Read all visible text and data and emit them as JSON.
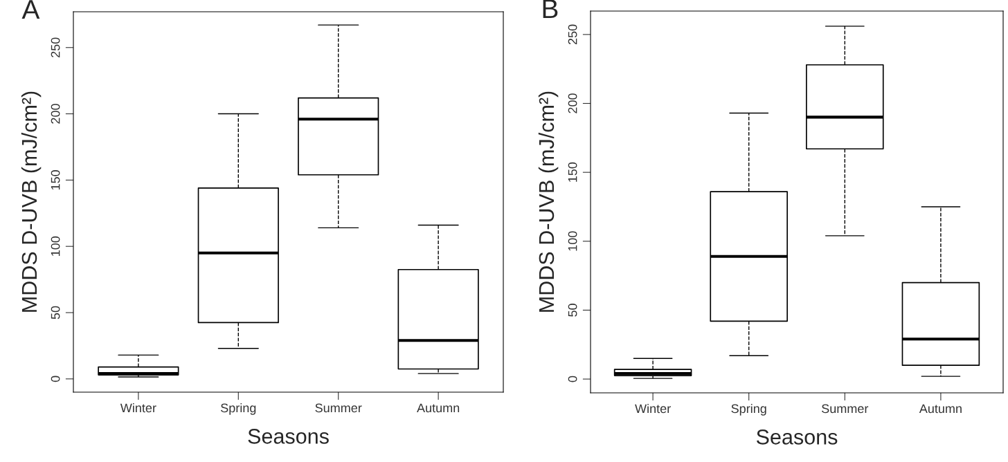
{
  "chart_data": [
    {
      "type": "box",
      "title": "A",
      "xlabel": "Seasons",
      "ylabel": "MDDS D-UVB (mJ/cm²)",
      "categories": [
        "Winter",
        "Spring",
        "Summer",
        "Autumn"
      ],
      "boxes": [
        {
          "low": 1.5,
          "q1": 3,
          "median": 4,
          "q3": 9,
          "high": 18
        },
        {
          "low": 23,
          "q1": 42.5,
          "median": 95,
          "q3": 144,
          "high": 200
        },
        {
          "low": 114,
          "q1": 154,
          "median": 196,
          "q3": 212,
          "high": 267
        },
        {
          "low": 4,
          "q1": 7.5,
          "median": 29,
          "q3": 82.5,
          "high": 116
        }
      ],
      "ylim": [
        -10,
        277
      ],
      "yticks": [
        0,
        50,
        100,
        150,
        200,
        250
      ]
    },
    {
      "type": "box",
      "title": "B",
      "xlabel": "Seasons",
      "ylabel": "MDDS D-UVB (mJ/cm²)",
      "categories": [
        "Winter",
        "Spring",
        "Summer",
        "Autumn"
      ],
      "boxes": [
        {
          "low": 0.5,
          "q1": 2.5,
          "median": 4,
          "q3": 7,
          "high": 15
        },
        {
          "low": 17,
          "q1": 42,
          "median": 89,
          "q3": 136,
          "high": 193
        },
        {
          "low": 104,
          "q1": 167,
          "median": 190,
          "q3": 228,
          "high": 256
        },
        {
          "low": 2,
          "q1": 10,
          "median": 29,
          "q3": 70,
          "high": 125
        }
      ],
      "ylim": [
        -10,
        267
      ],
      "yticks": [
        0,
        50,
        100,
        150,
        200,
        250
      ]
    }
  ]
}
